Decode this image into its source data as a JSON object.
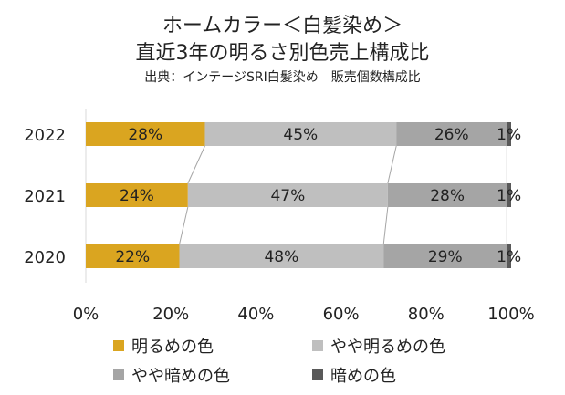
{
  "chart_data": {
    "type": "bar",
    "orientation": "horizontal",
    "stacked": true,
    "title": "ホームカラー＜白髪染め＞",
    "subtitle": "直近3年の明るさ別色売上構成比",
    "source": "出典：インテージSRI白髪染め　販売個数構成比",
    "categories": [
      "2022",
      "2021",
      "2020"
    ],
    "xlim": [
      0,
      100
    ],
    "x_ticks": [
      "0%",
      "20%",
      "40%",
      "60%",
      "80%",
      "100%"
    ],
    "legend_position": "bottom",
    "series": [
      {
        "name": "明るめの色",
        "values": [
          28,
          24,
          22
        ],
        "labels": [
          "28%",
          "24%",
          "22%"
        ],
        "color": "#DAA520"
      },
      {
        "name": "やや明るめの色",
        "values": [
          45,
          47,
          48
        ],
        "labels": [
          "45%",
          "47%",
          "48%"
        ],
        "color": "#BFBFBF"
      },
      {
        "name": "やや暗めの色",
        "values": [
          26,
          28,
          29
        ],
        "labels": [
          "26%",
          "28%",
          "29%"
        ],
        "color": "#A5A5A5"
      },
      {
        "name": "暗めの色",
        "values": [
          1,
          1,
          1
        ],
        "labels": [
          "1%",
          "1%",
          "1%"
        ],
        "color": "#595959"
      }
    ]
  }
}
